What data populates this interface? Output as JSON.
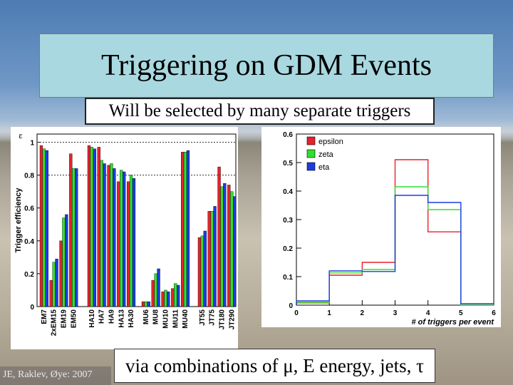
{
  "slide": {
    "title": "Triggering on GDM Events",
    "subtitle": "Will be selected by many separate triggers",
    "bottom_text": "via combinations of μ, E energy, jets, τ",
    "credit": "JE, Raklev, Øye: 2007"
  },
  "colors": {
    "red": "#e8212b",
    "green": "#2fe02f",
    "blue": "#1c3ce0",
    "title_bg": "#a9d8e0"
  },
  "chart_data": [
    {
      "type": "bar",
      "ylabel": "Trigger efficiency",
      "ylabel_symbol": "ε",
      "ylim": [
        0,
        1.05
      ],
      "yticks": [
        0,
        0.2,
        0.4,
        0.6,
        0.8,
        1
      ],
      "ytick_labels": [
        "0",
        "0.2",
        "0.4",
        "0.6",
        "0.8",
        "1"
      ],
      "grid": "dashed horizontal at 0.8 and 1",
      "series_colors": [
        "#e8212b",
        "#2fe02f",
        "#1c3ce0"
      ],
      "groups": [
        {
          "categories": [
            "EM7",
            "2xEM15",
            "EM19",
            "EM50"
          ],
          "values": [
            [
              0.98,
              0.96,
              0.95
            ],
            [
              0.16,
              0.27,
              0.29
            ],
            [
              0.4,
              0.54,
              0.56
            ],
            [
              0.93,
              0.84,
              0.84
            ]
          ]
        },
        {
          "categories": [
            "HA10",
            "HA7",
            "HA9",
            "HA13",
            "HA30"
          ],
          "values": [
            [
              0.98,
              0.97,
              0.96
            ],
            [
              0.97,
              0.89,
              0.87
            ],
            [
              0.86,
              0.87,
              0.84
            ],
            [
              0.76,
              0.83,
              0.82
            ],
            [
              0.76,
              0.8,
              0.78
            ]
          ]
        },
        {
          "categories": [
            "MU6",
            "MU8",
            "MU10",
            "MU11",
            "MU40"
          ],
          "values": [
            [
              0.03,
              0.03,
              0.03
            ],
            [
              0.16,
              0.2,
              0.23
            ],
            [
              0.09,
              0.1,
              0.09
            ],
            [
              0.11,
              0.14,
              0.13
            ],
            [
              0.94,
              0.94,
              0.95
            ]
          ]
        },
        {
          "categories": [
            "JT55",
            "JT75",
            "JT180",
            "JT290"
          ],
          "values": [
            [
              0.42,
              0.43,
              0.46
            ],
            [
              0.58,
              0.58,
              0.61
            ],
            [
              0.85,
              0.73,
              0.75
            ],
            [
              0.74,
              0.7,
              0.67
            ]
          ]
        }
      ],
      "group_overlap_to_next": [
        [
          0.65,
          0.66,
          0.66
        ]
      ]
    },
    {
      "type": "line",
      "style": "step histogram",
      "xlabel": "# of triggers per event",
      "xlim": [
        0,
        6
      ],
      "ylim": [
        0,
        0.6
      ],
      "xticks": [
        0,
        1,
        2,
        3,
        4,
        5,
        6
      ],
      "yticks": [
        0,
        0.1,
        0.2,
        0.3,
        0.4,
        0.5,
        0.6
      ],
      "ytick_labels": [
        "0",
        "0.1",
        "0.2",
        "0.3",
        "0.4",
        "0.5",
        "0.6"
      ],
      "legend": "top-left",
      "bin_edges": [
        0,
        1,
        2,
        3,
        4,
        5,
        6
      ],
      "series": [
        {
          "name": "epsilon",
          "color": "#e8212b",
          "values": [
            0.008,
            0.105,
            0.15,
            0.51,
            0.257,
            0.0
          ]
        },
        {
          "name": "zeta",
          "color": "#2fe02f",
          "values": [
            0.01,
            0.113,
            0.125,
            0.415,
            0.335,
            0.0
          ]
        },
        {
          "name": "eta",
          "color": "#1c3ce0",
          "values": [
            0.015,
            0.12,
            0.118,
            0.385,
            0.36,
            0.005
          ]
        }
      ]
    }
  ]
}
